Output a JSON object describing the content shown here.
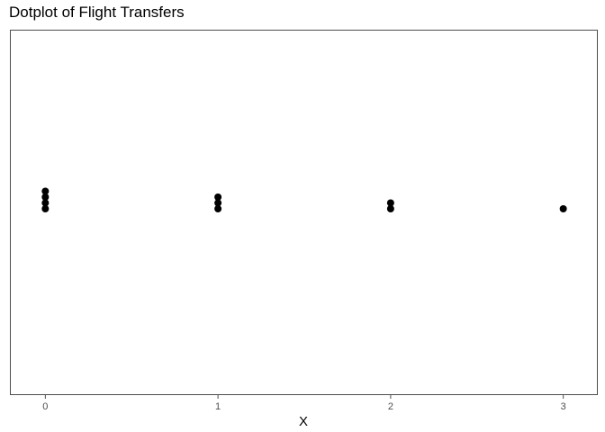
{
  "chart_data": {
    "type": "scatter",
    "subtype": "dotplot",
    "title": "Dotplot of Flight Transfers",
    "xlabel": "X",
    "ylabel": "",
    "x_ticks": [
      "0",
      "1",
      "2",
      "3"
    ],
    "xlim": [
      -0.2,
      3.2
    ],
    "counts": [
      {
        "x": 0,
        "count": 4
      },
      {
        "x": 1,
        "count": 3
      },
      {
        "x": 2,
        "count": 2
      },
      {
        "x": 3,
        "count": 1
      }
    ],
    "grid": false,
    "legend": "none",
    "y_axis_visible": false,
    "dot_color": "#000000",
    "frame_color": "#4d4d4d",
    "text_color": "#4d4d4d"
  }
}
